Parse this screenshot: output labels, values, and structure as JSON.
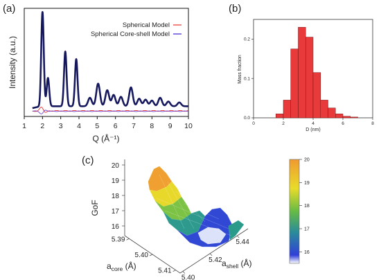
{
  "chart_data": [
    {
      "panel": "(a)",
      "type": "line",
      "xlabel": "Q (Å⁻¹)",
      "ylabel": "Intensity (a.u.)",
      "xlim": [
        1,
        10
      ],
      "x_ticks": [
        "1",
        "2",
        "3",
        "4",
        "5",
        "6",
        "7",
        "8",
        "9",
        "10"
      ],
      "y_ticks_shown": false,
      "grid": false,
      "legend_position": "top-right",
      "series": [
        {
          "name": "Spherical Model",
          "color": "#e8312b"
        },
        {
          "name": "Spherical Core-shell Model",
          "color": "#3a1fd0"
        }
      ],
      "peaks": [
        {
          "q": 2.0,
          "intensity": 1.0
        },
        {
          "q": 2.3,
          "intensity": 0.3
        },
        {
          "q": 3.25,
          "intensity": 0.58
        },
        {
          "q": 3.85,
          "intensity": 0.5
        },
        {
          "q": 4.6,
          "intensity": 0.09
        },
        {
          "q": 5.05,
          "intensity": 0.24
        },
        {
          "q": 5.55,
          "intensity": 0.17
        },
        {
          "q": 5.9,
          "intensity": 0.12
        },
        {
          "q": 6.3,
          "intensity": 0.1
        },
        {
          "q": 6.85,
          "intensity": 0.2
        },
        {
          "q": 7.3,
          "intensity": 0.08
        },
        {
          "q": 7.65,
          "intensity": 0.07
        },
        {
          "q": 8.0,
          "intensity": 0.06
        },
        {
          "q": 8.45,
          "intensity": 0.09
        },
        {
          "q": 8.9,
          "intensity": 0.05
        },
        {
          "q": 9.5,
          "intensity": 0.04
        }
      ]
    },
    {
      "panel": "(b)",
      "type": "bar",
      "xlabel": "D (nm)",
      "ylabel": "Mass fraction",
      "xlim": [
        0,
        8
      ],
      "ylim": [
        0,
        0.25
      ],
      "x_ticks": [
        "0",
        "2",
        "4",
        "6",
        "8"
      ],
      "y_ticks": [
        "0.0",
        "0.1",
        "0.2"
      ],
      "bar_color": "#e83a3a",
      "bin_width": 0.5,
      "bin_centers": [
        1.75,
        2.25,
        2.75,
        3.25,
        3.75,
        4.25,
        4.75,
        5.25,
        5.75,
        6.25,
        6.75
      ],
      "values": [
        0.01,
        0.045,
        0.175,
        0.23,
        0.205,
        0.115,
        0.045,
        0.025,
        0.01,
        0.004,
        0.002
      ]
    },
    {
      "panel": "(c)",
      "type": "surface",
      "zlabel": "GoF",
      "xlabel_main": "a",
      "xlabel_sub": "core",
      "xlabel_unit": " (Å)",
      "ylabel_main": "a",
      "ylabel_sub": "shell",
      "ylabel_unit": " (Å)",
      "z_ticks": [
        "16",
        "17",
        "18",
        "19",
        "20"
      ],
      "x_ticks": [
        "5.39",
        "5.40",
        "5.41"
      ],
      "y_ticks": [
        "5.40",
        "5.42",
        "5.44"
      ],
      "zlim": [
        15.5,
        20
      ],
      "colorbar_ticks": [
        "16",
        "17",
        "18",
        "19",
        "20"
      ],
      "colormap": [
        "#f0f0ff",
        "#2a3fd0",
        "#1f8a8a",
        "#5fb83a",
        "#e6d82a",
        "#f0a030"
      ]
    }
  ],
  "panel_labels": {
    "a": "(a)",
    "b": "(b)",
    "c": "(c)"
  }
}
